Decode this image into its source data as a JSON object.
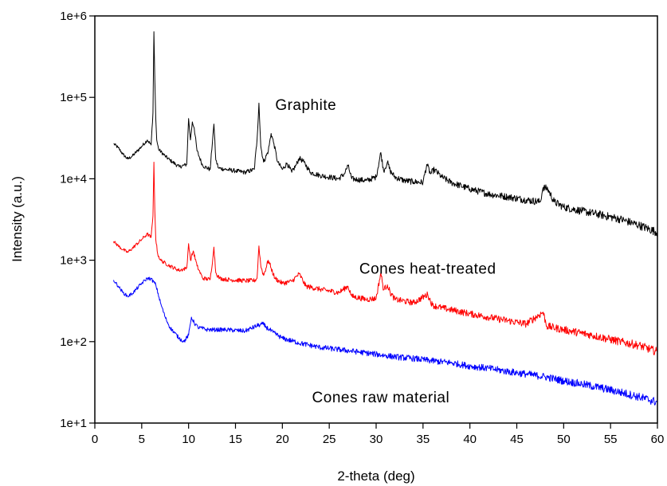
{
  "chart_data": {
    "type": "line",
    "title": "",
    "xlabel": "2-theta (deg)",
    "ylabel": "Intensity (a.u.)",
    "xlim": [
      0,
      60
    ],
    "ylim": [
      10,
      1000000
    ],
    "yscale": "log",
    "grid": false,
    "legend": "none",
    "xticks": [
      0,
      5,
      10,
      15,
      20,
      25,
      30,
      35,
      40,
      45,
      50,
      55,
      60
    ],
    "yticks": [
      {
        "value": 10,
        "label": "1e+1"
      },
      {
        "value": 100,
        "label": "1e+2"
      },
      {
        "value": 1000,
        "label": "1e+3"
      },
      {
        "value": 10000,
        "label": "1e+4"
      },
      {
        "value": 100000,
        "label": "1e+5"
      },
      {
        "value": 1000000,
        "label": "1e+6"
      }
    ],
    "annotations": [
      {
        "text": "Graphite",
        "x": 22.5,
        "y": 70000
      },
      {
        "text": "Cones heat-treated",
        "x": 35.5,
        "y": 680
      },
      {
        "text": "Cones raw material",
        "x": 30.5,
        "y": 18
      }
    ],
    "series": [
      {
        "color": "#000000",
        "x": [
          2,
          2.5,
          3,
          3.5,
          4,
          5,
          5.6,
          6.0,
          6.2,
          6.3,
          6.4,
          6.5,
          6.6,
          6.8,
          7.5,
          8,
          9,
          9.8,
          10.0,
          10.2,
          10.4,
          10.6,
          10.9,
          11.5,
          12.3,
          12.6,
          12.7,
          12.9,
          13.2,
          14,
          15,
          16,
          17,
          17.3,
          17.5,
          17.7,
          18,
          18.5,
          18.8,
          19.1,
          19.5,
          20,
          20.5,
          21,
          21.5,
          21.8,
          22.3,
          23,
          24,
          25,
          26,
          26.6,
          27,
          27.4,
          28,
          29,
          30,
          30.5,
          30.8,
          31.2,
          31.5,
          32,
          33,
          34,
          35,
          35.4,
          35.8,
          36.2,
          37,
          38,
          40,
          42,
          44,
          46,
          47.5,
          47.8,
          48.3,
          49,
          50,
          52,
          54,
          56,
          58,
          60
        ],
        "values": [
          27000,
          24000,
          20000,
          17500,
          19000,
          25000,
          30000,
          26000,
          65000,
          640000,
          160000,
          55000,
          30000,
          23000,
          19000,
          17000,
          14000,
          15000,
          55000,
          30000,
          50000,
          42000,
          22000,
          14500,
          13000,
          35000,
          47000,
          17000,
          13500,
          13000,
          12500,
          12000,
          13000,
          30000,
          85000,
          25000,
          16000,
          22000,
          36000,
          27000,
          16000,
          13000,
          15500,
          12000,
          15000,
          18000,
          16000,
          12000,
          11000,
          10500,
          10000,
          11500,
          14500,
          10000,
          9800,
          9500,
          10500,
          21000,
          12500,
          16000,
          12500,
          10500,
          9500,
          9200,
          9000,
          15000,
          11500,
          13000,
          10500,
          9000,
          7500,
          6500,
          6000,
          5500,
          5200,
          7800,
          7500,
          5200,
          4500,
          4000,
          3600,
          3200,
          2700,
          2200
        ]
      },
      {
        "color": "#ff0000",
        "x": [
          2,
          2.5,
          3,
          3.5,
          4,
          5,
          5.6,
          6.0,
          6.2,
          6.3,
          6.4,
          6.5,
          6.7,
          7,
          8,
          9,
          9.8,
          10.0,
          10.2,
          10.5,
          10.9,
          11.5,
          12.3,
          12.6,
          12.7,
          12.9,
          13.3,
          14,
          16,
          17,
          17.3,
          17.5,
          17.7,
          18,
          18.5,
          18.8,
          19.2,
          20,
          21,
          21.8,
          22.5,
          24,
          26,
          27,
          27.4,
          29,
          30,
          30.5,
          30.8,
          31.2,
          31.5,
          32,
          34,
          35.5,
          36,
          37,
          40,
          43,
          46,
          47.8,
          48.2,
          50,
          53,
          56,
          58,
          60
        ],
        "values": [
          1700,
          1500,
          1350,
          1250,
          1400,
          1800,
          2100,
          1900,
          3500,
          16000,
          4000,
          1800,
          1200,
          1000,
          850,
          750,
          800,
          1600,
          1000,
          1300,
          850,
          600,
          580,
          1100,
          1450,
          700,
          600,
          580,
          560,
          560,
          600,
          1500,
          850,
          650,
          1000,
          800,
          600,
          520,
          550,
          680,
          480,
          440,
          400,
          480,
          360,
          330,
          340,
          700,
          430,
          500,
          400,
          330,
          300,
          380,
          280,
          260,
          220,
          190,
          165,
          230,
          155,
          140,
          120,
          100,
          90,
          75
        ]
      },
      {
        "color": "#0000ff",
        "x": [
          2,
          2.5,
          3,
          3.5,
          4,
          5,
          5.6,
          6.0,
          6.5,
          7,
          7.5,
          8,
          9,
          9.5,
          10,
          10.3,
          10.6,
          11,
          12,
          13,
          14,
          16,
          17.5,
          17.9,
          18.3,
          19,
          20,
          22,
          24,
          26,
          28,
          30,
          32,
          34,
          36,
          38,
          40,
          42,
          44,
          46,
          48,
          50,
          52,
          54,
          56,
          58,
          60
        ],
        "values": [
          570,
          480,
          400,
          360,
          390,
          520,
          600,
          590,
          500,
          300,
          200,
          150,
          110,
          100,
          120,
          200,
          170,
          150,
          140,
          140,
          140,
          135,
          160,
          165,
          150,
          130,
          110,
          95,
          85,
          80,
          75,
          70,
          65,
          62,
          58,
          55,
          50,
          47,
          43,
          40,
          37,
          33,
          30,
          27,
          24,
          21,
          18
        ]
      }
    ]
  }
}
